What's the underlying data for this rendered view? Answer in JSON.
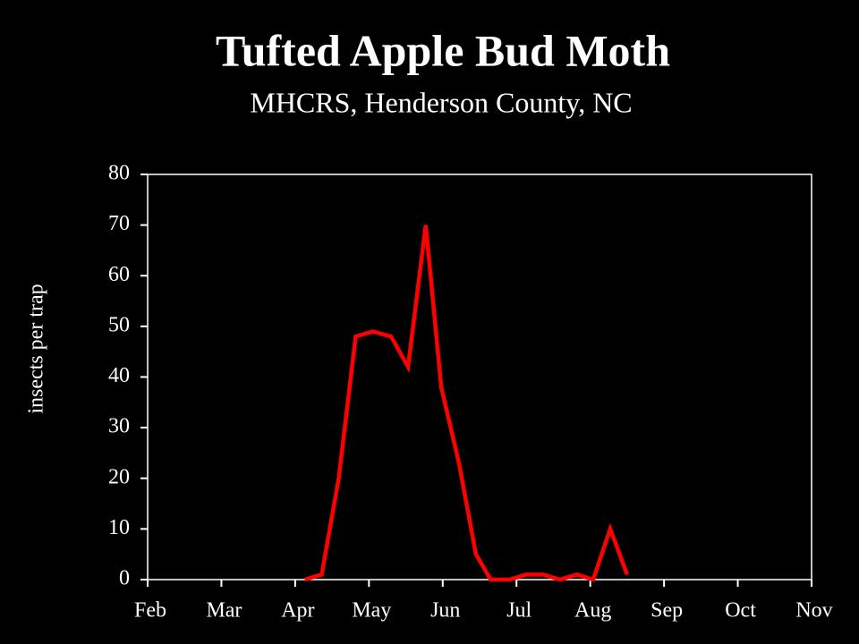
{
  "chart_data": {
    "type": "line",
    "title": "Tufted Apple Bud Moth",
    "subtitle": "MHCRS, Henderson County, NC",
    "y_label": "insects per trap",
    "x": [
      2.13,
      2.36,
      2.59,
      2.82,
      3.05,
      3.3,
      3.53,
      3.77,
      3.98,
      4.22,
      4.45,
      4.65,
      4.91,
      5.13,
      5.36,
      5.59,
      5.82,
      6.04,
      6.27,
      6.5
    ],
    "series": [
      {
        "color": "#ff0000",
        "values": [
          0,
          1,
          20,
          48,
          49,
          48,
          42,
          70,
          38,
          23,
          5,
          0,
          0,
          1,
          1,
          0,
          1,
          0,
          10,
          1
        ]
      }
    ],
    "xlim": [
      0,
      9
    ],
    "xticks": [
      {
        "value": 0,
        "label": "Feb"
      },
      {
        "value": 1,
        "label": "Mar"
      },
      {
        "value": 2,
        "label": "Apr"
      },
      {
        "value": 3,
        "label": "May"
      },
      {
        "value": 4,
        "label": "Jun"
      },
      {
        "value": 5,
        "label": "Jul"
      },
      {
        "value": 6,
        "label": "Aug"
      },
      {
        "value": 7,
        "label": "Sep"
      },
      {
        "value": 8,
        "label": "Oct"
      },
      {
        "value": 9,
        "label": "Nov"
      }
    ],
    "ylim": [
      0,
      80
    ],
    "yticks": [
      0,
      10,
      20,
      30,
      40,
      50,
      60,
      70,
      80
    ]
  }
}
